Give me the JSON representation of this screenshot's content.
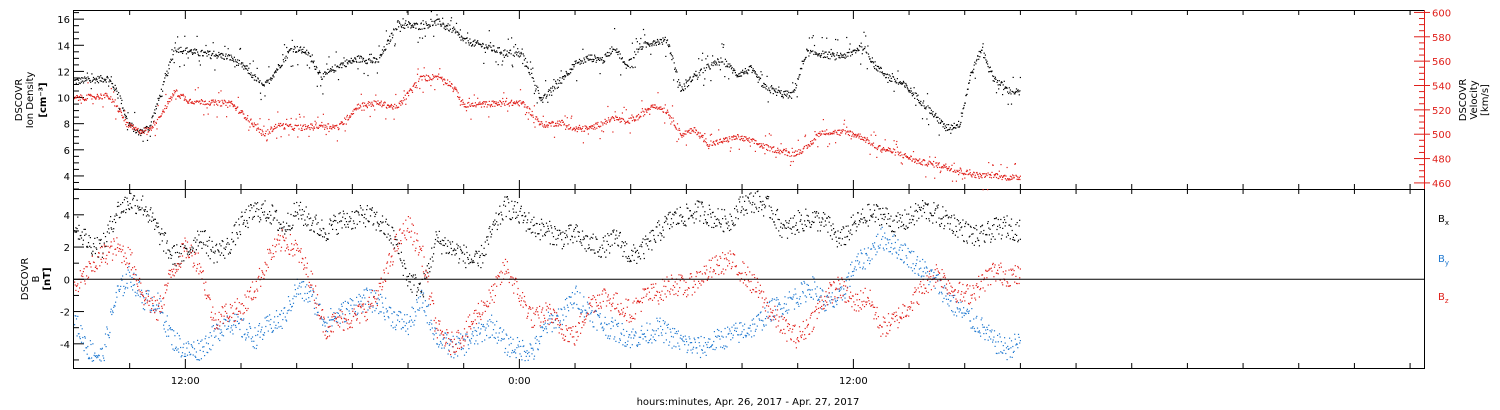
{
  "chart_data": [
    {
      "type": "scatter",
      "panel": "top",
      "ylabel_lines": [
        "DSCOVR",
        "Ion Density",
        "[cm⁻³]"
      ],
      "y2label_lines": [
        "DSCOVR",
        "Velocity",
        "[km/s]"
      ],
      "ylim": [
        3,
        16.7
      ],
      "y2lim": [
        455,
        602
      ],
      "yticks": [
        4,
        6,
        8,
        10,
        12,
        14,
        16
      ],
      "y2ticks": [
        460,
        480,
        500,
        520,
        540,
        560,
        580,
        600
      ],
      "series": [
        {
          "name": "Ion Density",
          "axis": "left",
          "color": "#000000",
          "x": [
            0,
            0.6,
            1.2,
            1.6,
            1.9,
            2.3,
            2.7,
            3.2,
            3.6,
            4.1,
            4.6,
            5.1,
            5.6,
            6.2,
            6.8,
            7.3,
            7.8,
            8.3,
            8.9,
            9.5,
            10.2,
            10.9,
            11.6,
            12.4,
            13.1,
            13.6,
            14.0,
            14.7,
            15.4,
            16.1,
            16.8,
            17.5,
            18.0,
            18.5,
            19.0,
            19.4,
            19.8,
            20.3,
            20.8,
            21.3,
            21.8,
            22.3,
            22.8,
            23.3,
            23.8,
            24.3,
            24.8,
            25.3,
            25.8,
            26.3,
            26.8,
            27.3,
            27.8,
            28.3,
            28.8,
            29.3,
            29.8,
            30.3,
            30.8,
            31.3,
            31.8,
            32.2,
            32.6,
            33.0,
            33.5,
            34.0
          ],
          "y": [
            11.3,
            11.4,
            11.5,
            10.3,
            8.2,
            7.3,
            7.8,
            11.0,
            13.8,
            13.6,
            13.4,
            13.3,
            13.1,
            12.2,
            10.8,
            12.3,
            13.8,
            13.6,
            11.6,
            12.5,
            13.0,
            12.8,
            15.6,
            15.5,
            15.8,
            15.2,
            14.4,
            14.0,
            13.5,
            13.3,
            9.8,
            11.5,
            12.6,
            13.1,
            12.9,
            14.0,
            12.4,
            13.9,
            14.3,
            14.4,
            10.6,
            11.8,
            12.4,
            12.9,
            11.8,
            12.2,
            10.8,
            10.4,
            10.2,
            13.5,
            13.4,
            13.2,
            13.3,
            14.0,
            12.4,
            11.5,
            11.0,
            10.0,
            8.9,
            7.7,
            8.0,
            11.8,
            13.8,
            11.6,
            10.6,
            10.4
          ]
        },
        {
          "name": "Velocity",
          "axis": "right",
          "color": "#e0201b",
          "x": [
            0,
            0.6,
            1.2,
            1.6,
            1.9,
            2.3,
            2.7,
            3.2,
            3.6,
            4.1,
            4.6,
            5.1,
            5.6,
            6.2,
            6.8,
            7.3,
            7.8,
            8.3,
            8.9,
            9.5,
            10.2,
            10.9,
            11.6,
            12.4,
            13.1,
            13.6,
            14.0,
            14.7,
            15.4,
            16.1,
            16.8,
            17.5,
            18.0,
            18.5,
            19.0,
            19.4,
            19.8,
            20.3,
            20.8,
            21.3,
            21.8,
            22.3,
            22.8,
            23.3,
            23.8,
            24.3,
            24.8,
            25.3,
            25.8,
            26.3,
            26.8,
            27.3,
            27.8,
            28.3,
            28.8,
            29.3,
            29.8,
            30.3,
            30.8,
            31.3,
            31.8,
            32.2,
            32.6,
            33.0,
            33.5,
            34.0
          ],
          "y": [
            530,
            531,
            532,
            520,
            508,
            503,
            504,
            520,
            535,
            528,
            527,
            526,
            526,
            514,
            500,
            508,
            506,
            506,
            508,
            506,
            524,
            526,
            522,
            546,
            548,
            540,
            524,
            525,
            526,
            526,
            508,
            510,
            504,
            505,
            510,
            514,
            510,
            515,
            525,
            519,
            500,
            504,
            492,
            495,
            498,
            495,
            490,
            487,
            484,
            489,
            502,
            502,
            502,
            498,
            490,
            487,
            483,
            478,
            476,
            474,
            470,
            468,
            466,
            467,
            465,
            465
          ]
        }
      ]
    },
    {
      "type": "scatter",
      "panel": "bottom",
      "ylabel_lines": [
        "DSCOVR",
        "B",
        "[nT]"
      ],
      "ylim": [
        -5.5,
        5.6
      ],
      "yticks": [
        -4,
        -2,
        0,
        2,
        4
      ],
      "zero_line": true,
      "legend": "right",
      "series": [
        {
          "name": "Bx",
          "color": "#000000",
          "x": [
            0,
            0.5,
            1.0,
            1.5,
            2.0,
            2.5,
            3.0,
            3.5,
            4.0,
            4.5,
            5.0,
            5.5,
            6.0,
            6.5,
            7.0,
            7.5,
            8.0,
            8.5,
            9.0,
            9.5,
            10.0,
            10.5,
            11.0,
            11.5,
            12.0,
            12.5,
            13.0,
            13.5,
            14.0,
            14.5,
            15.0,
            15.5,
            16.0,
            16.5,
            17.0,
            17.5,
            18.0,
            18.5,
            19.0,
            19.5,
            20.0,
            20.5,
            21.0,
            21.5,
            22.0,
            22.5,
            23.0,
            23.5,
            24.0,
            24.5,
            25.0,
            25.5,
            26.0,
            26.5,
            27.0,
            27.5,
            28.0,
            28.5,
            29.0,
            29.5,
            30.0,
            30.5,
            31.0,
            31.5,
            32.0,
            32.5,
            33.0,
            33.5,
            34.0
          ],
          "y": [
            3.5,
            2.3,
            2.0,
            4.2,
            4.9,
            4.6,
            3.0,
            1.5,
            1.6,
            2.8,
            1.7,
            2.0,
            3.5,
            4.3,
            4.2,
            3.2,
            4.3,
            3.6,
            3.0,
            3.6,
            3.8,
            4.0,
            3.5,
            2.5,
            0.0,
            -0.6,
            2.5,
            2.0,
            1.5,
            1.0,
            3.0,
            4.6,
            4.0,
            3.3,
            3.0,
            2.6,
            2.8,
            2.2,
            2.0,
            2.6,
            1.4,
            2.0,
            3.0,
            3.8,
            4.0,
            4.3,
            3.8,
            3.6,
            4.7,
            4.9,
            4.4,
            3.0,
            3.6,
            3.8,
            3.5,
            2.4,
            3.4,
            4.0,
            4.1,
            3.4,
            3.8,
            4.4,
            4.0,
            3.6,
            3.0,
            2.6,
            3.1,
            3.3,
            3.0
          ]
        },
        {
          "name": "By",
          "color": "#1e78d0",
          "x": [
            0,
            0.5,
            1.0,
            1.5,
            2.0,
            2.5,
            3.0,
            3.5,
            4.0,
            4.5,
            5.0,
            5.5,
            6.0,
            6.5,
            7.0,
            7.5,
            8.0,
            8.5,
            9.0,
            9.5,
            10.0,
            10.5,
            11.0,
            11.5,
            12.0,
            12.5,
            13.0,
            13.5,
            14.0,
            14.5,
            15.0,
            15.5,
            16.0,
            16.5,
            17.0,
            17.5,
            18.0,
            18.5,
            19.0,
            19.5,
            20.0,
            20.5,
            21.0,
            21.5,
            22.0,
            22.5,
            23.0,
            23.5,
            24.0,
            24.5,
            25.0,
            25.5,
            26.0,
            26.5,
            27.0,
            27.5,
            28.0,
            28.5,
            29.0,
            29.5,
            30.0,
            30.5,
            31.0,
            31.5,
            32.0,
            32.5,
            33.0,
            33.5,
            34.0
          ],
          "y": [
            -2.5,
            -4.3,
            -4.8,
            -1.0,
            0.3,
            -1.2,
            -1.5,
            -3.6,
            -4.4,
            -4.3,
            -3.5,
            -2.5,
            -3.0,
            -3.6,
            -2.8,
            -2.4,
            -0.5,
            -1.0,
            -2.6,
            -2.2,
            -1.6,
            -1.2,
            -1.5,
            -2.4,
            -2.8,
            -1.2,
            -3.5,
            -4.2,
            -4.0,
            -3.4,
            -2.8,
            -4.0,
            -4.3,
            -4.4,
            -2.7,
            -2.2,
            -1.0,
            -2.0,
            -2.8,
            -3.2,
            -3.6,
            -3.4,
            -3.0,
            -3.6,
            -4.0,
            -4.2,
            -3.8,
            -3.5,
            -3.2,
            -2.8,
            -1.9,
            -1.5,
            -1.0,
            -0.4,
            -1.5,
            -1.2,
            0.8,
            1.5,
            2.6,
            2.1,
            1.4,
            0.6,
            -0.2,
            -1.4,
            -2.2,
            -2.8,
            -3.8,
            -4.3,
            -3.8
          ]
        },
        {
          "name": "Bz",
          "color": "#e0201b",
          "x": [
            0,
            0.5,
            1.0,
            1.5,
            2.0,
            2.5,
            3.0,
            3.5,
            4.0,
            4.5,
            5.0,
            5.5,
            6.0,
            6.5,
            7.0,
            7.5,
            8.0,
            8.5,
            9.0,
            9.5,
            10.0,
            10.5,
            11.0,
            11.5,
            12.0,
            12.5,
            13.0,
            13.5,
            14.0,
            14.5,
            15.0,
            15.5,
            16.0,
            16.5,
            17.0,
            17.5,
            18.0,
            18.5,
            19.0,
            19.5,
            20.0,
            20.5,
            21.0,
            21.5,
            22.0,
            22.5,
            23.0,
            23.5,
            24.0,
            24.5,
            25.0,
            25.5,
            26.0,
            26.5,
            27.0,
            27.5,
            28.0,
            28.5,
            29.0,
            29.5,
            30.0,
            30.5,
            31.0,
            31.5,
            32.0,
            32.5,
            33.0,
            33.5,
            34.0
          ],
          "y": [
            -0.5,
            0.5,
            1.5,
            2.0,
            1.3,
            -1.0,
            -2.0,
            0.5,
            2.0,
            1.0,
            -2.5,
            -2.0,
            -1.8,
            -0.5,
            1.5,
            2.5,
            1.8,
            0.0,
            -3.0,
            -2.5,
            -2.4,
            -1.8,
            -0.6,
            2.0,
            3.4,
            1.5,
            -3.0,
            -4.0,
            -3.4,
            -2.0,
            -1.0,
            0.8,
            -1.0,
            -2.5,
            -2.0,
            -3.0,
            -3.5,
            -1.5,
            -1.0,
            -1.5,
            -2.0,
            -1.0,
            -0.8,
            -0.2,
            -0.5,
            0.2,
            0.8,
            1.2,
            0.5,
            -0.5,
            -2.0,
            -3.0,
            -3.6,
            -2.5,
            -1.0,
            -0.4,
            -1.5,
            -1.0,
            -3.0,
            -2.5,
            -1.5,
            -0.5,
            0.5,
            -0.5,
            -1.0,
            -0.4,
            0.5,
            0.3,
            0.2
          ]
        }
      ]
    }
  ],
  "x_axis": {
    "title": "hours:minutes, Apr. 26, 2017 - Apr. 27, 2017",
    "start_hour": 8,
    "end_hour": 56.5,
    "data_end_hour": 42,
    "tick_labels": [
      "12:00",
      "0:00",
      "12:00"
    ],
    "tick_label_hours": [
      12,
      24,
      36
    ],
    "minor_tick_step_hours": 2
  },
  "legend": {
    "bx_main": "B",
    "bx_sub": "x",
    "by_main": "B",
    "by_sub": "y",
    "bz_main": "B",
    "bz_sub": "z"
  },
  "colors": {
    "black": "#000000",
    "red": "#e0201b",
    "blue": "#1e78d0"
  }
}
